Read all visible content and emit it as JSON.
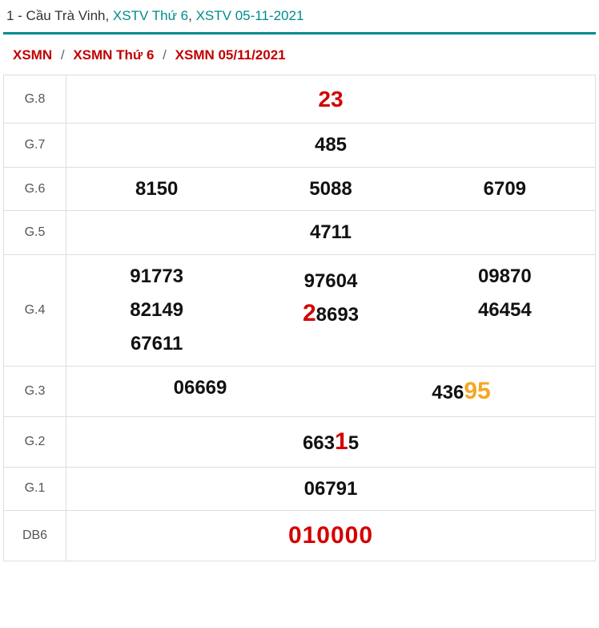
{
  "header": {
    "prefix": "1 - Cầu Trà Vinh, ",
    "link1": "XSTV Thứ 6",
    "sep": ", ",
    "link2": "XSTV 05-11-2021"
  },
  "breadcrumb": {
    "b1": "XSMN",
    "b2": "XSMN Thứ 6",
    "b3": "XSMN 05/11/2021",
    "sep": "/"
  },
  "rows": {
    "g8": {
      "label": "G.8",
      "value": "23"
    },
    "g7": {
      "label": "G.7",
      "value": "485"
    },
    "g6": {
      "label": "G.6",
      "v1": "8150",
      "v2": "5088",
      "v3": "6709"
    },
    "g5": {
      "label": "G.5",
      "value": "4711"
    },
    "g4": {
      "label": "G.4",
      "c1a": "91773",
      "c2a_pre": "",
      "c2a_hl": "",
      "c2a_post": "97604",
      "c3a": "09870",
      "c1b": "82149",
      "c2b_pre": "",
      "c2b_hl": "2",
      "c2b_post": "8693",
      "c3b": "46454",
      "c1c": "67611"
    },
    "g3": {
      "label": "G.3",
      "v1": "06669",
      "v2_pre": "436",
      "v2_hl": "95",
      "v2_post": ""
    },
    "g2": {
      "label": "G.2",
      "pre": "663",
      "hl": "1",
      "post": "5"
    },
    "g1": {
      "label": "G.1",
      "value": "06791"
    },
    "db": {
      "label": "DB6",
      "value": "010000"
    }
  },
  "colors": {
    "teal": "#008b8b",
    "red": "#d40000",
    "orange": "#f5a623",
    "border": "#dddddd",
    "text": "#111111",
    "label": "#555555"
  },
  "fonts": {
    "header_size": 17,
    "breadcrumb_size": 17,
    "label_size": 16,
    "num_size": 24,
    "highlight_size": 30,
    "prize8_size": 28,
    "db_size": 30
  }
}
